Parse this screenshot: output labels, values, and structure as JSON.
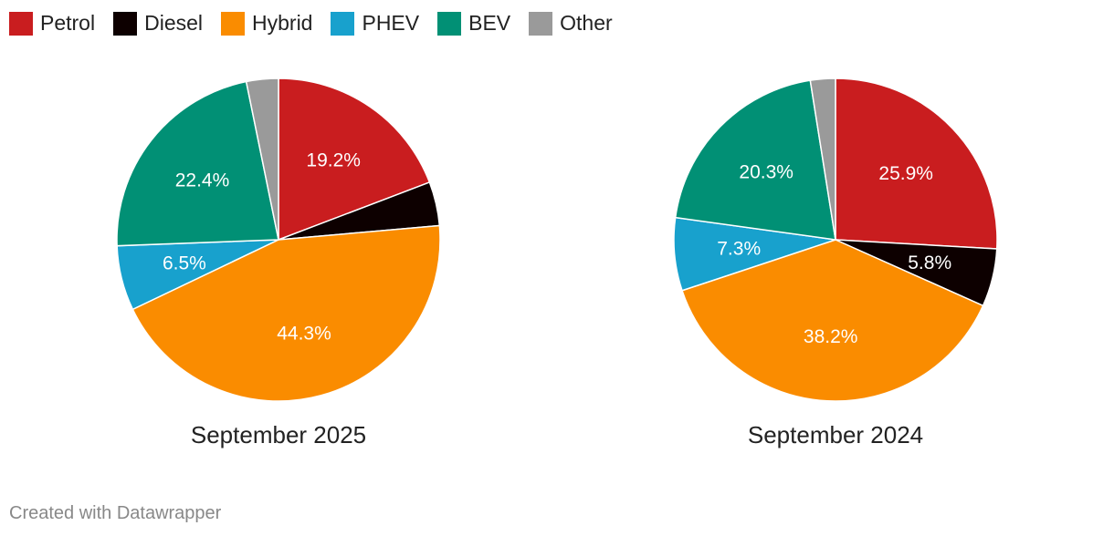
{
  "legend": [
    {
      "name": "Petrol",
      "color": "#c91d1f"
    },
    {
      "name": "Diesel",
      "color": "#0d0000"
    },
    {
      "name": "Hybrid",
      "color": "#fa8c00"
    },
    {
      "name": "PHEV",
      "color": "#18a1cd"
    },
    {
      "name": "BEV",
      "color": "#019075"
    },
    {
      "name": "Other",
      "color": "#9a9a9a"
    }
  ],
  "chart_data": [
    {
      "type": "pie",
      "title": "September 2025",
      "categories": [
        "Petrol",
        "Diesel",
        "Hybrid",
        "PHEV",
        "BEV",
        "Other"
      ],
      "values": [
        19.2,
        4.4,
        44.3,
        6.5,
        22.4,
        3.2
      ],
      "labels": [
        "19.2%",
        "",
        "44.3%",
        "6.5%",
        "22.4%",
        ""
      ]
    },
    {
      "type": "pie",
      "title": "September 2024",
      "categories": [
        "Petrol",
        "Diesel",
        "Hybrid",
        "PHEV",
        "BEV",
        "Other"
      ],
      "values": [
        25.9,
        5.8,
        38.2,
        7.3,
        20.3,
        2.5
      ],
      "labels": [
        "25.9%",
        "5.8%",
        "38.2%",
        "7.3%",
        "20.3%",
        ""
      ]
    }
  ],
  "footer": {
    "credit": "Created with Datawrapper"
  }
}
